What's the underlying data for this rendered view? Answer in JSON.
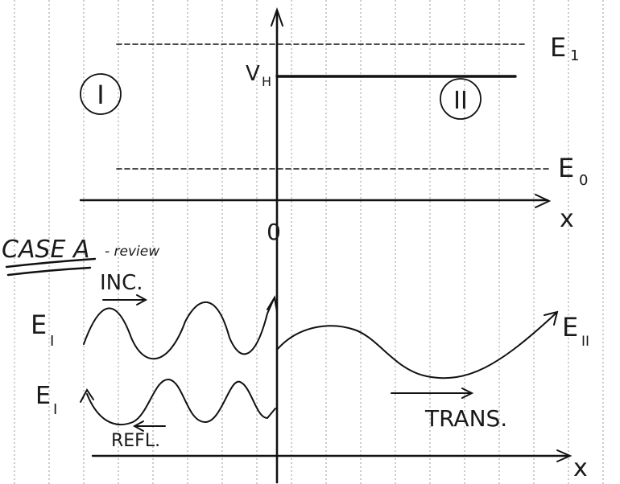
{
  "region_labels": {
    "left": "I",
    "right": "II"
  },
  "energy_labels": {
    "e1": "E",
    "e1_sub": "1",
    "e0": "E",
    "e0_sub": "0",
    "vh": "V",
    "vh_sub": "H"
  },
  "axis_labels": {
    "x_top": "x",
    "x_bottom": "x",
    "origin": "0"
  },
  "case_heading": {
    "title": "CASE A",
    "note": "- review"
  },
  "wave_labels": {
    "inc": "INC.",
    "refl": "REFL.",
    "trans": "TRANS.",
    "incident_energy": "E",
    "incident_sub": "I",
    "reflected_energy": "E",
    "reflected_sub": "I",
    "transmitted_energy": "E",
    "transmitted_sub": "II"
  }
}
